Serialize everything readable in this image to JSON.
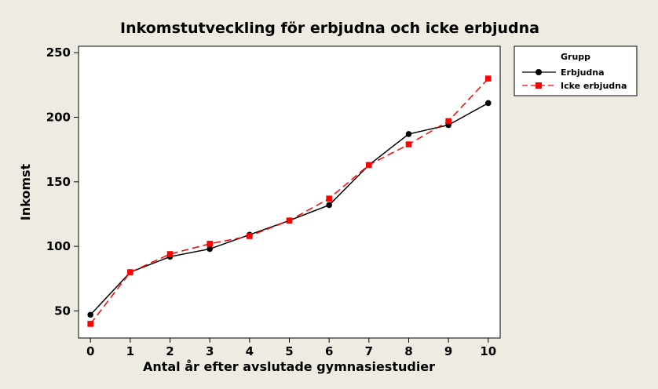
{
  "chart_data": {
    "type": "line",
    "title": "Inkomstutveckling för erbjudna och icke erbjudna",
    "xlabel": "Antal år efter avslutade gymnasiestudier",
    "ylabel": "Inkomst",
    "x": [
      0,
      1,
      2,
      3,
      4,
      5,
      6,
      7,
      8,
      9,
      10
    ],
    "xlim": [
      -0.3,
      10.3
    ],
    "ylim": [
      29,
      255
    ],
    "yticks": [
      50,
      100,
      150,
      200,
      250
    ],
    "grid": false,
    "legend": {
      "title": "Grupp",
      "position": "top-right, outside plot"
    },
    "series": [
      {
        "name": "Erbjudna",
        "color": "#000000",
        "line_style": "solid",
        "marker": "circle",
        "values": [
          47,
          80,
          92,
          98,
          109,
          120,
          132,
          163,
          187,
          194,
          211
        ]
      },
      {
        "name": "Icke erbjudna",
        "color": "#ff0000",
        "line_style": "dashed",
        "marker": "square",
        "values": [
          40,
          80,
          94,
          102,
          108,
          120,
          137,
          163,
          179,
          197,
          230
        ]
      }
    ]
  }
}
